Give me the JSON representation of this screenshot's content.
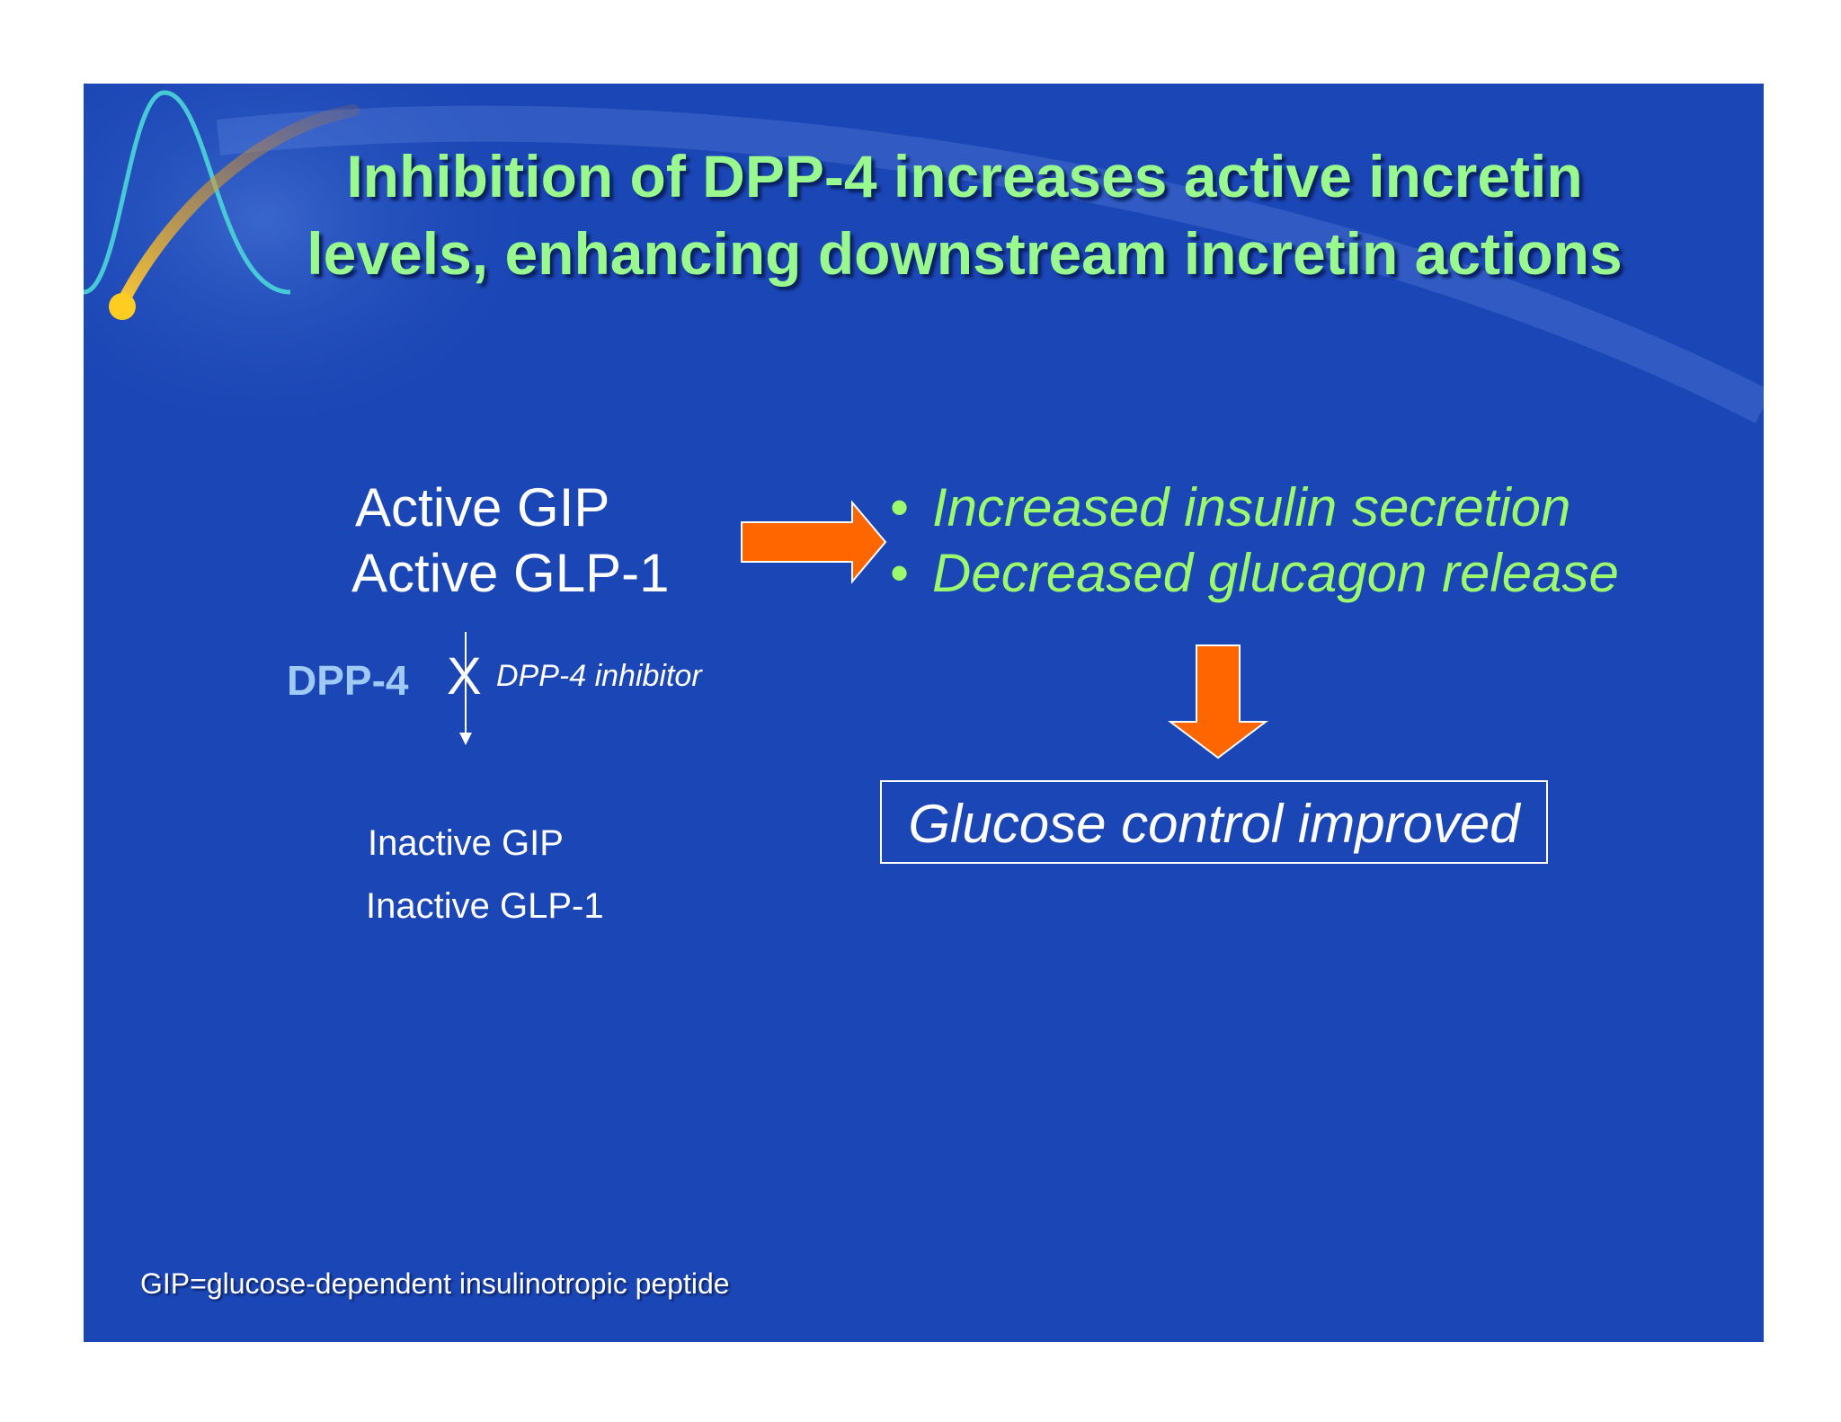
{
  "slide": {
    "title_line1": "Inhibition of DPP-4 increases active incretin",
    "title_line2": "levels, enhancing downstream incretin actions",
    "active_gip": "Active GIP",
    "active_glp1": "Active GLP-1",
    "effects": [
      "Increased insulin secretion",
      "Decreased glucagon release"
    ],
    "bullet_symbol": "•",
    "dpp4_label": "DPP-4",
    "block_symbol": "X",
    "inhibitor_label": "DPP-4 inhibitor",
    "inactive_gip": "Inactive GIP",
    "inactive_glp1": "Inactive GLP-1",
    "outcome": "Glucose control improved",
    "footnote": "GIP=glucose-dependent insulinotropic peptide"
  },
  "colors": {
    "background": "#1b46b5",
    "title": "#99f88e",
    "effects": "#9cf86c",
    "arrows": "#ff6600",
    "dpp4_label": "#9fcaf5",
    "text": "#ffffff"
  }
}
